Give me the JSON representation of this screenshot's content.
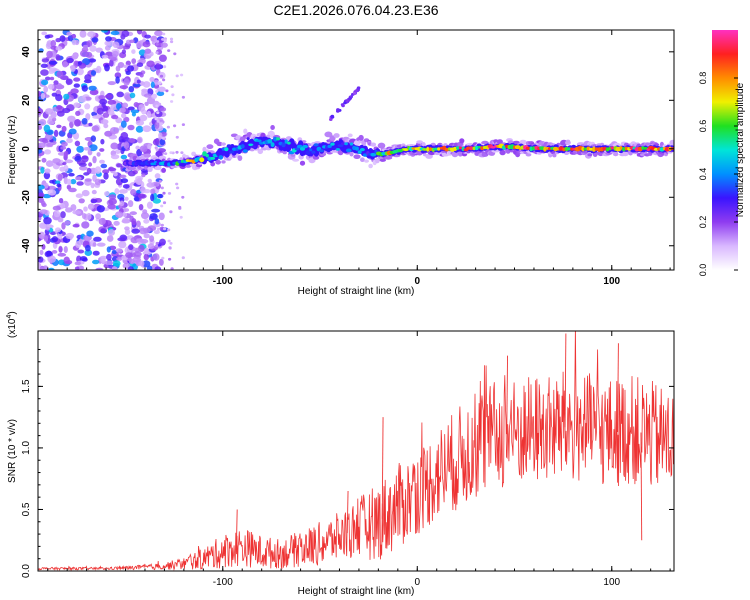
{
  "chart_data": [
    {
      "type": "heatmap",
      "title": "C2E1.2026.076.04.23.E36",
      "xlabel": "Height of straight line (km)",
      "ylabel": "Frequency (Hz)",
      "xlim": [
        -195,
        132
      ],
      "ylim": [
        -50,
        49
      ],
      "xticks": [
        -100,
        0,
        100
      ],
      "yticks": [
        -40,
        -20,
        0,
        20,
        40
      ],
      "colorbar": {
        "label": "Normalized spectral amplitude",
        "range": [
          0,
          1
        ],
        "ticks": [
          "0.0",
          "0.2",
          "0.4",
          "0.6",
          "0.8"
        ],
        "colors": [
          "#ffffff",
          "#d9b8ff",
          "#8f3cf0",
          "#3a14ff",
          "#0090ff",
          "#00e5d8",
          "#20e020",
          "#f0f000",
          "#ff8c00",
          "#ff2020",
          "#ff30c0"
        ]
      },
      "band": {
        "x": [
          -150,
          -135,
          -125,
          -115,
          -105,
          -95,
          -85,
          -75,
          -65,
          -55,
          -45,
          -35,
          -25,
          -15,
          -5,
          5,
          25,
          45,
          65,
          85,
          105,
          132
        ],
        "freq": [
          -6,
          -6,
          -6,
          -5,
          -3,
          0,
          2,
          3,
          1,
          -1,
          1,
          1,
          -2,
          -2,
          0,
          0,
          0,
          1,
          0,
          0,
          0,
          0
        ],
        "amplitude": [
          0.3,
          0.45,
          0.55,
          0.8,
          0.5,
          0.5,
          0.5,
          0.55,
          0.5,
          0.45,
          0.5,
          0.5,
          0.45,
          0.8,
          0.75,
          0.85,
          0.9,
          0.95,
          0.95,
          0.95,
          0.95,
          0.9
        ]
      },
      "noise_region": {
        "x": [
          -195,
          -135
        ],
        "amplitude": [
          0.1,
          0.35
        ]
      },
      "branch": {
        "x": [
          -45,
          -30
        ],
        "freq": [
          12,
          25
        ]
      }
    },
    {
      "type": "line",
      "title": "",
      "xlabel": "Height of straight line (km)",
      "ylabel": "SNR (10 * v/v)",
      "y_multiplier": "(x10",
      "y_multiplier_exp": "4",
      "y_multiplier_close": ")",
      "xlim": [
        -195,
        132
      ],
      "ylim": [
        0,
        1.95
      ],
      "xticks": [
        -100,
        0,
        100
      ],
      "yticks": [
        "0.0",
        "0.5",
        "1.0",
        "1.5"
      ],
      "color": "#ee3333",
      "series": [
        {
          "name": "SNR",
          "x": [
            -195,
            -180,
            -160,
            -140,
            -130,
            -120,
            -110,
            -100,
            -90,
            -80,
            -70,
            -60,
            -50,
            -40,
            -30,
            -20,
            -10,
            0,
            10,
            20,
            30,
            40,
            50,
            60,
            70,
            80,
            90,
            100,
            110,
            120,
            132
          ],
          "mean": [
            0.02,
            0.02,
            0.02,
            0.03,
            0.04,
            0.06,
            0.1,
            0.16,
            0.2,
            0.15,
            0.14,
            0.18,
            0.22,
            0.28,
            0.35,
            0.4,
            0.52,
            0.64,
            0.78,
            0.9,
            1.02,
            1.1,
            1.12,
            1.15,
            1.15,
            1.18,
            1.15,
            1.12,
            1.15,
            1.1,
            1.05
          ],
          "spread": [
            0.01,
            0.01,
            0.01,
            0.02,
            0.03,
            0.05,
            0.09,
            0.14,
            0.16,
            0.14,
            0.12,
            0.15,
            0.18,
            0.2,
            0.25,
            0.32,
            0.35,
            0.35,
            0.38,
            0.42,
            0.45,
            0.45,
            0.45,
            0.45,
            0.45,
            0.48,
            0.45,
            0.45,
            0.45,
            0.45,
            0.42
          ],
          "peaks": [
            {
              "x": -93,
              "y": 0.5
            },
            {
              "x": -36,
              "y": 0.65
            },
            {
              "x": -18,
              "y": 1.25
            },
            {
              "x": 46,
              "y": 1.75
            },
            {
              "x": 76,
              "y": 1.93
            },
            {
              "x": 103,
              "y": 1.85
            },
            {
              "x": 115,
              "y": 0.25
            }
          ]
        }
      ]
    }
  ]
}
